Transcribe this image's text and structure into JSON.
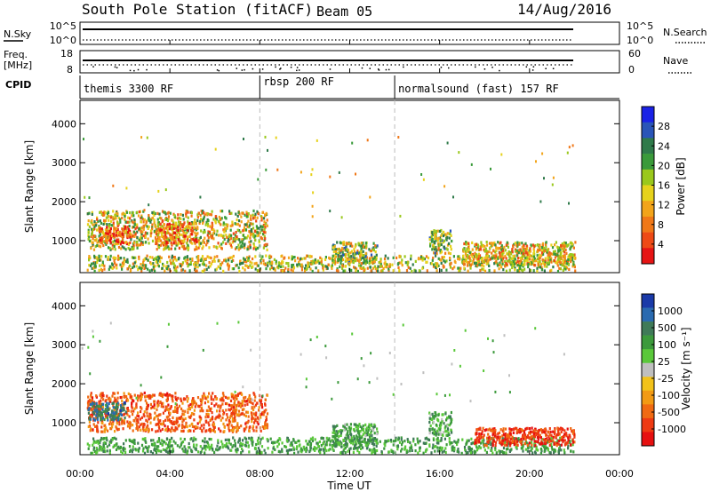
{
  "header": {
    "station": "South Pole Station (fitACF)",
    "beam": "Beam 05",
    "date": "14/Aug/2016"
  },
  "strips": {
    "nsky": {
      "label": "N.Sky",
      "ticks": [
        "10^5",
        "10^0"
      ]
    },
    "nsearch": {
      "label": "N.Search",
      "ticks": [
        "10^5",
        "10^0"
      ]
    },
    "freq": {
      "label_line1": "Freq.",
      "label_line2": "[MHz]",
      "ticks": [
        "18",
        "8"
      ]
    },
    "nave": {
      "label": "Nave",
      "ticks": [
        "60",
        "0"
      ]
    },
    "cpid": {
      "label": "CPID",
      "modes": [
        {
          "name": "themis 3300 RF",
          "start_hour": 0,
          "end_hour": 8
        },
        {
          "name": "rbsp 200 RF",
          "start_hour": 8,
          "end_hour": 14
        },
        {
          "name": "normalsound (fast) 157 RF",
          "start_hour": 14,
          "end_hour": 22
        }
      ]
    }
  },
  "axes": {
    "xlabel": "Time UT",
    "xticks": [
      "00:00",
      "04:00",
      "08:00",
      "12:00",
      "16:00",
      "20:00",
      "00:00"
    ],
    "ylabel_top": "Slant Range [km]",
    "ylabel_bottom": "Slant Range [km]",
    "yticks": [
      "4000",
      "3000",
      "2000",
      "1000"
    ]
  },
  "colorbars": {
    "power": {
      "label": "Power [dB]",
      "ticks": [
        "28",
        "24",
        "20",
        "16",
        "12",
        "8",
        "4"
      ],
      "colors": [
        "#1a22e6",
        "#2a55b8",
        "#2f7a4a",
        "#3a9a3a",
        "#9ac81c",
        "#e6d21c",
        "#f2a41a",
        "#f07818",
        "#ee4a16",
        "#e61414"
      ]
    },
    "velocity": {
      "label": "Velocity [m s⁻¹]",
      "ticks": [
        "1000",
        "500",
        "100",
        "25",
        "-25",
        "-100",
        "-500",
        "-1000"
      ],
      "colors": [
        "#1a3aa8",
        "#2a6ab0",
        "#3f7a58",
        "#3c9a3c",
        "#5ac83a",
        "#bfbfbf",
        "#f2c21a",
        "#f29a14",
        "#f06a12",
        "#ee3a12",
        "#e61010"
      ]
    }
  },
  "chart_data": {
    "type": "heatmap",
    "title": "South Pole Station (fitACF) Beam 05 14/Aug/2016",
    "xlabel": "Time UT",
    "ylabel": "Slant Range [km]",
    "xlim_hours": [
      0,
      24
    ],
    "ylim_km": [
      180,
      4600
    ],
    "data_end_hour": 22,
    "mode_boundaries_hours": [
      8,
      14
    ],
    "power_echo_regions": [
      {
        "t0": 0.3,
        "t1": 8.3,
        "r0": 800,
        "r1": 1800,
        "level": 0.55
      },
      {
        "t0": 0.8,
        "t1": 2.2,
        "r0": 950,
        "r1": 1400,
        "level": 0.85
      },
      {
        "t0": 3.3,
        "t1": 5.2,
        "r0": 950,
        "r1": 1500,
        "level": 0.75
      },
      {
        "t0": 0.3,
        "t1": 22,
        "r0": 250,
        "r1": 650,
        "level": 0.5
      },
      {
        "t0": 11.2,
        "t1": 13.2,
        "r0": 450,
        "r1": 1000,
        "level": 0.45
      },
      {
        "t0": 15.5,
        "t1": 16.5,
        "r0": 700,
        "r1": 1300,
        "level": 0.45
      },
      {
        "t0": 17.0,
        "t1": 22,
        "r0": 400,
        "r1": 1000,
        "level": 0.6
      }
    ],
    "velocity_echo_regions": [
      {
        "t0": 0.3,
        "t1": 8.3,
        "r0": 800,
        "r1": 1800,
        "vel": -1.0
      },
      {
        "t0": 0.3,
        "t1": 2.0,
        "r0": 1100,
        "r1": 1550,
        "vel": 1.0
      },
      {
        "t0": 0.3,
        "t1": 22,
        "r0": 250,
        "r1": 650,
        "vel": 0.6
      },
      {
        "t0": 11.2,
        "t1": 13.2,
        "r0": 450,
        "r1": 1000,
        "vel": 0.5
      },
      {
        "t0": 15.5,
        "t1": 16.5,
        "r0": 700,
        "r1": 1300,
        "vel": 0.5
      },
      {
        "t0": 17.5,
        "t1": 22,
        "r0": 450,
        "r1": 900,
        "vel": -1.2
      }
    ]
  }
}
